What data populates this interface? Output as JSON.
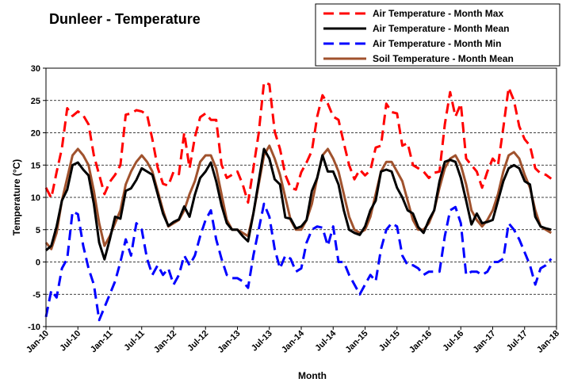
{
  "chart_data": {
    "type": "line",
    "title": "Dunleer - Temperature",
    "xlabel": "Month",
    "ylabel": "Temperature (°C)",
    "ylim": [
      -10,
      30
    ],
    "yticks": [
      -10,
      -5,
      0,
      5,
      10,
      15,
      20,
      25,
      30
    ],
    "xticks": [
      "Jan-10",
      "Jul-10",
      "Jan-11",
      "Jul-11",
      "Jan-12",
      "Jul-12",
      "Jan-13",
      "Jul-13",
      "Jan-14",
      "Jul-14",
      "Jan-15",
      "Jul-15",
      "Jan-16",
      "Jul-16",
      "Jan-17",
      "Jul-17",
      "Jan-18"
    ],
    "grid": "horizontal dashed",
    "legend_position": "top-right",
    "x_start": "Jan-10",
    "series": [
      {
        "name": "Air Temperature - Month Max",
        "color": "#ff0000",
        "dash": "long-dash",
        "values": [
          11.5,
          9.9,
          13.9,
          17.6,
          23.8,
          22.6,
          23.3,
          22.7,
          21.3,
          16.5,
          13.5,
          10.5,
          12.4,
          13.5,
          15.0,
          22.8,
          23.0,
          23.5,
          23.3,
          22.8,
          19.0,
          14.6,
          12.1,
          11.8,
          14.0,
          13.6,
          20.0,
          14.5,
          19.3,
          22.4,
          23.0,
          22.0,
          22.0,
          15.1,
          13.0,
          13.5,
          14.0,
          12.0,
          9.2,
          14.5,
          19.9,
          27.8,
          27.5,
          20.2,
          17.5,
          13.5,
          11.5,
          11.2,
          13.9,
          15.4,
          17.2,
          22.5,
          25.8,
          24.5,
          22.5,
          22.0,
          18.4,
          15.0,
          12.8,
          14.3,
          13.4,
          14.2,
          17.7,
          18.0,
          24.5,
          23.2,
          23.0,
          18.0,
          18.4,
          15.0,
          14.5,
          14.0,
          13.0,
          13.8,
          14.0,
          21.3,
          26.3,
          22.5,
          24.5,
          16.0,
          15.0,
          14.0,
          11.5,
          14.0,
          16.0,
          15.0,
          20.8,
          27.0,
          25.0,
          21.0,
          19.0,
          18.0,
          14.5,
          13.7,
          13.5,
          12.9
        ]
      },
      {
        "name": "Air Temperature - Month Mean",
        "color": "#000000",
        "dash": "solid",
        "values": [
          1.8,
          2.5,
          5.5,
          9.5,
          11.2,
          15.0,
          15.4,
          14.3,
          13.4,
          9.0,
          3.0,
          0.4,
          3.5,
          7.0,
          6.7,
          11.0,
          11.4,
          12.7,
          14.5,
          14.0,
          13.5,
          10.5,
          7.5,
          5.6,
          6.2,
          6.6,
          8.6,
          7.0,
          10.4,
          13.0,
          14.0,
          15.4,
          12.5,
          8.8,
          6.0,
          5.0,
          5.0,
          4.0,
          3.2,
          7.5,
          12.5,
          17.5,
          16.0,
          12.8,
          12.0,
          6.9,
          6.7,
          5.2,
          5.5,
          6.5,
          11.0,
          13.0,
          16.5,
          14.0,
          14.0,
          12.0,
          8.0,
          5.0,
          4.5,
          4.2,
          5.5,
          8.0,
          9.5,
          14.0,
          14.3,
          14.0,
          11.5,
          10.0,
          8.0,
          7.5,
          5.4,
          4.5,
          6.5,
          8.0,
          12.5,
          15.5,
          15.8,
          15.5,
          13.0,
          9.5,
          5.8,
          7.5,
          6.0,
          6.2,
          6.5,
          9.5,
          12.5,
          14.5,
          15.0,
          14.5,
          12.5,
          12.0,
          7.0,
          5.5,
          5.2,
          5.0
        ]
      },
      {
        "name": "Air Temperature - Month Min",
        "color": "#0000ff",
        "dash": "long-dash",
        "values": [
          -8.5,
          -4.4,
          -5.5,
          -1.0,
          0.5,
          7.8,
          7.4,
          2.5,
          -1.0,
          -3.5,
          -9.0,
          -7.0,
          -5.0,
          -3.0,
          0.0,
          3.5,
          1.0,
          6.0,
          5.0,
          0.5,
          -2.0,
          -0.5,
          -2.0,
          -1.0,
          -3.5,
          -2.0,
          1.0,
          -0.5,
          1.0,
          4.0,
          6.5,
          8.0,
          3.5,
          0.5,
          -2.0,
          -2.5,
          -2.5,
          -3.0,
          -4.0,
          1.0,
          5.0,
          9.0,
          7.0,
          2.0,
          -1.0,
          1.0,
          0.5,
          -1.5,
          -1.0,
          3.0,
          5.0,
          5.5,
          5.3,
          2.5,
          5.5,
          0.0,
          0.0,
          -2.0,
          -3.5,
          -5.0,
          -3.5,
          -2.0,
          -3.0,
          2.0,
          5.0,
          6.0,
          5.5,
          1.0,
          -0.5,
          -0.5,
          -1.0,
          -2.0,
          -1.5,
          -1.5,
          -1.5,
          4.0,
          8.0,
          8.5,
          6.0,
          -2.0,
          -1.5,
          -1.5,
          -2.0,
          -1.5,
          0.0,
          0.0,
          0.5,
          6.0,
          5.0,
          3.5,
          1.5,
          -0.5,
          -3.5,
          -1.0,
          -0.5,
          0.5
        ]
      },
      {
        "name": "Soil Temperature - Month Mean",
        "color": "#a0522d",
        "dash": "solid",
        "values": [
          3.0,
          2.0,
          4.5,
          9.5,
          13.0,
          16.5,
          17.5,
          16.5,
          15.0,
          11.0,
          6.0,
          2.5,
          4.0,
          6.0,
          8.0,
          12.0,
          14.0,
          15.5,
          16.5,
          15.5,
          14.0,
          11.0,
          8.0,
          5.5,
          6.0,
          6.5,
          8.0,
          10.5,
          12.5,
          15.5,
          16.5,
          16.5,
          14.5,
          10.5,
          6.5,
          5.0,
          5.0,
          4.5,
          4.0,
          7.5,
          12.0,
          16.5,
          18.0,
          16.0,
          13.5,
          10.0,
          6.5,
          5.0,
          5.0,
          6.5,
          9.0,
          13.0,
          16.5,
          17.5,
          16.0,
          14.0,
          10.5,
          7.0,
          5.0,
          4.5,
          5.0,
          7.0,
          10.5,
          14.0,
          15.5,
          15.5,
          14.0,
          12.5,
          9.5,
          6.5,
          5.0,
          5.0,
          6.0,
          8.0,
          11.5,
          14.5,
          16.0,
          16.5,
          15.0,
          12.0,
          8.0,
          6.5,
          5.5,
          6.5,
          8.0,
          10.5,
          14.0,
          16.5,
          17.0,
          16.0,
          13.5,
          11.5,
          8.0,
          5.5,
          5.0,
          4.5
        ]
      }
    ]
  }
}
